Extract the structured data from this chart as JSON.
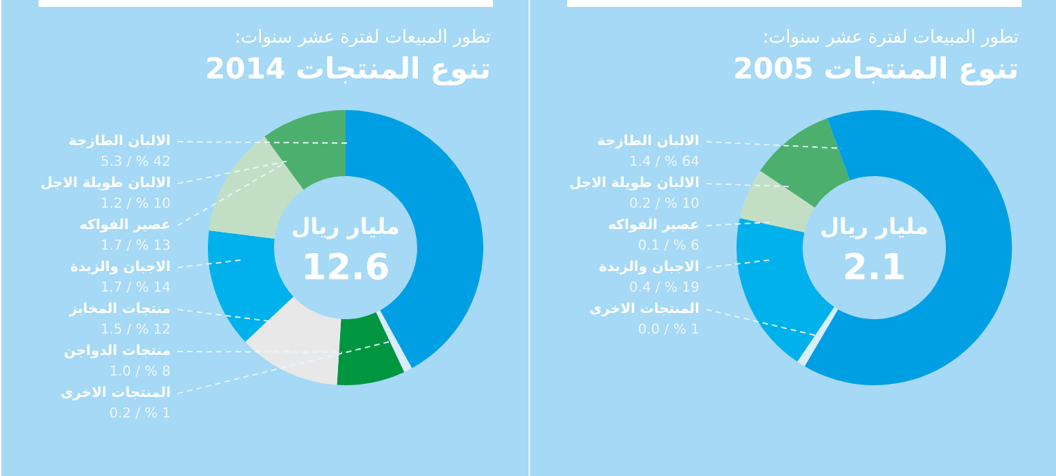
{
  "chart_data": [
    {
      "type": "donut",
      "title": "تنوع المنتجات 2005",
      "subtitle": "تطور المبيعات لفترة عشر سنوات:",
      "categories": [
        "الالبان الطازجة",
        "الالبان طويلة الاجل",
        "عصير الفواكه",
        "الاجبان والزبدة",
        "المنتجات الاخرى"
      ],
      "values": [
        64,
        10,
        6,
        19,
        1
      ],
      "value_labels": [
        "1.4 / % 64",
        "0.2 / % 10",
        "0.1 / % 6",
        "0.4 / % 19",
        "0.0 / % 1"
      ],
      "colors": [
        "#009fe3",
        "#4caf6e",
        "#c2dfc6",
        "#00b1ec",
        "#d8eefa"
      ],
      "annotations": [
        "مليار ريال",
        "2.1"
      ],
      "legend": false
    },
    {
      "type": "donut",
      "title": "تنوع المنتجات 2014",
      "subtitle": "تطور المبيعات لفترة عشر سنوات:",
      "categories": [
        "الالبان الطازجة",
        "الالبان طويلة الاجل",
        "عصير الفواكه",
        "الاجبان والزبدة",
        "منتجات المخابز",
        "منتجات الدواجن",
        "المنتجات الاخرى"
      ],
      "values": [
        42,
        10,
        13,
        14,
        12,
        8,
        1
      ],
      "value_labels": [
        "5.3 / % 42",
        "1.2 / % 10",
        "1.7 / % 13",
        "1.7 / % 14",
        "1.5 / % 12",
        "1.0 / % 8",
        "0.2 / % 1"
      ],
      "colors": [
        "#009fe3",
        "#4caf6e",
        "#c2dfc6",
        "#00b1ec",
        "#e8e8e8",
        "#009640",
        "#d8eefa"
      ],
      "annotations": [
        "مليار ريال",
        "12.6"
      ],
      "legend": false
    }
  ]
}
